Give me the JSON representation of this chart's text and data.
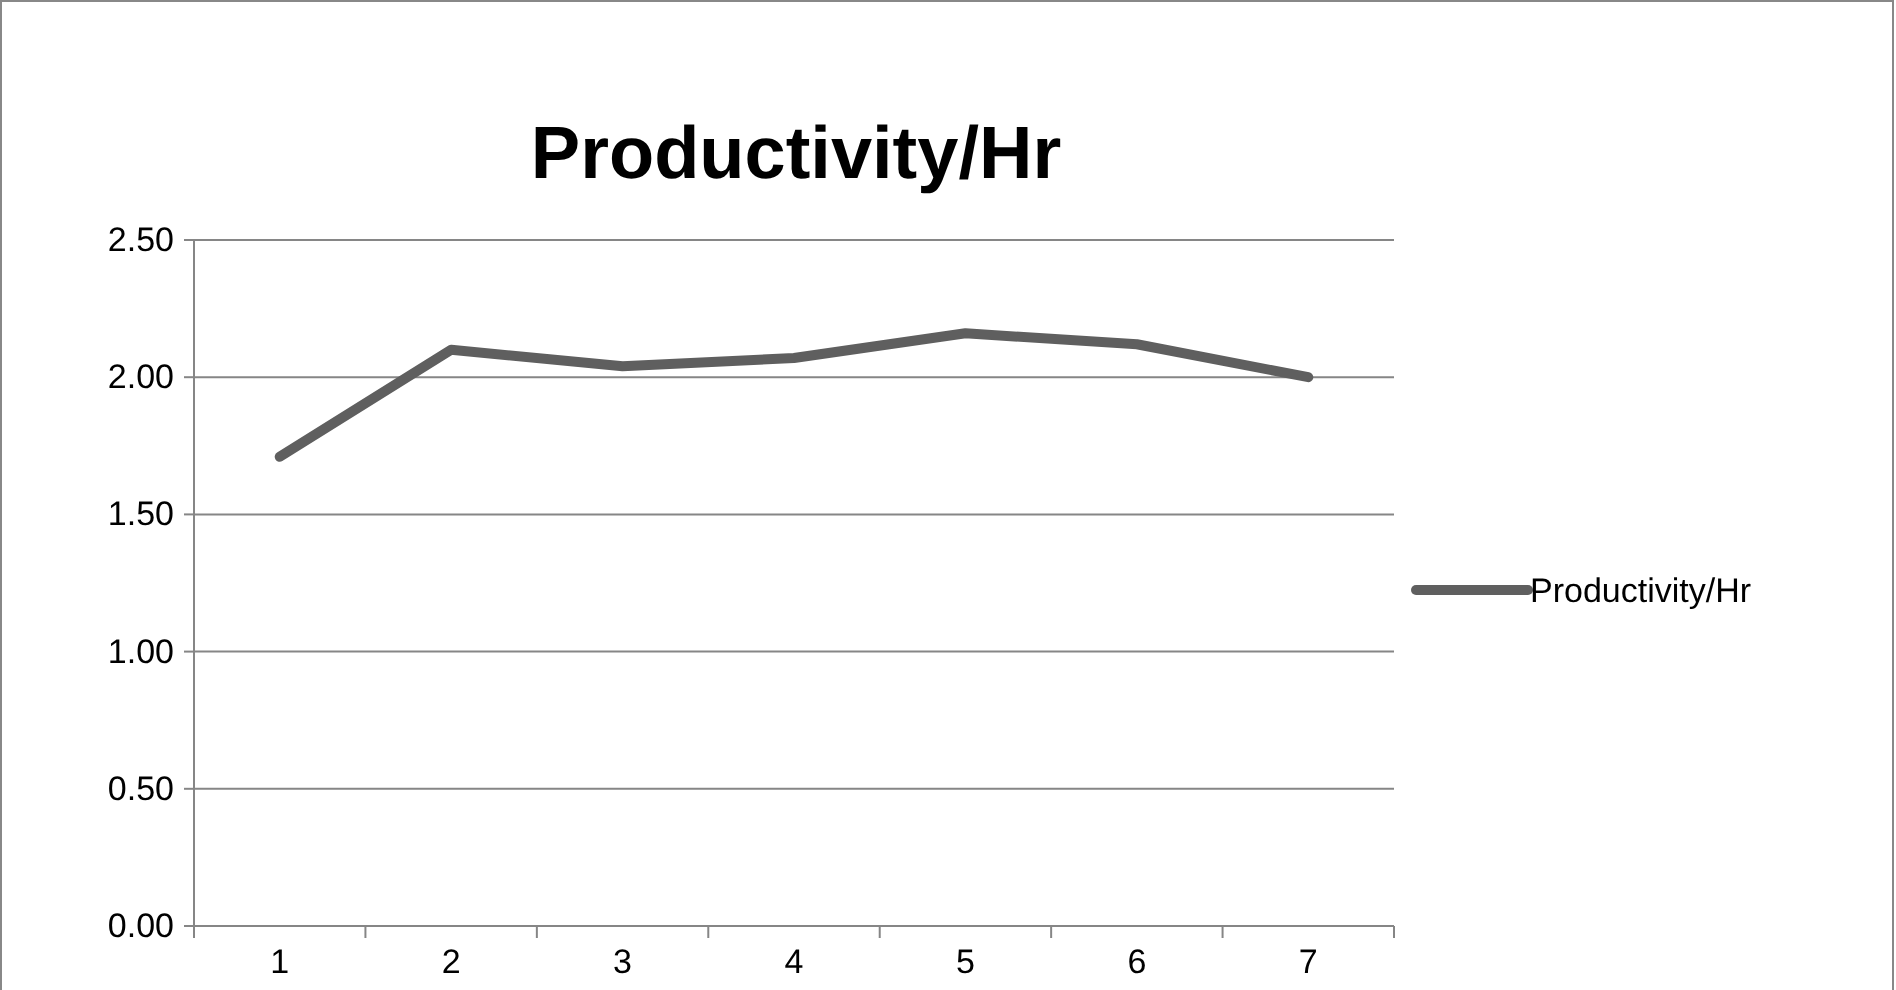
{
  "chart_data": {
    "type": "line",
    "title": "Productivity/Hr",
    "categories": [
      "1",
      "2",
      "3",
      "4",
      "5",
      "6",
      "7"
    ],
    "series": [
      {
        "name": "Productivity/Hr",
        "color": "#5f5f5f",
        "values": [
          1.71,
          2.1,
          2.04,
          2.07,
          2.16,
          2.12,
          2.0
        ]
      }
    ],
    "ylim": [
      0,
      2.5
    ],
    "yticks": [
      {
        "value": 0,
        "label": "0.00"
      },
      {
        "value": 0.5,
        "label": "0.50"
      },
      {
        "value": 1,
        "label": "1.00"
      },
      {
        "value": 1.5,
        "label": "1.50"
      },
      {
        "value": 2,
        "label": "2.00"
      },
      {
        "value": 2.5,
        "label": "2.50"
      }
    ],
    "grid": "y",
    "legend": "right",
    "marker": "none",
    "line_style": "solid"
  }
}
